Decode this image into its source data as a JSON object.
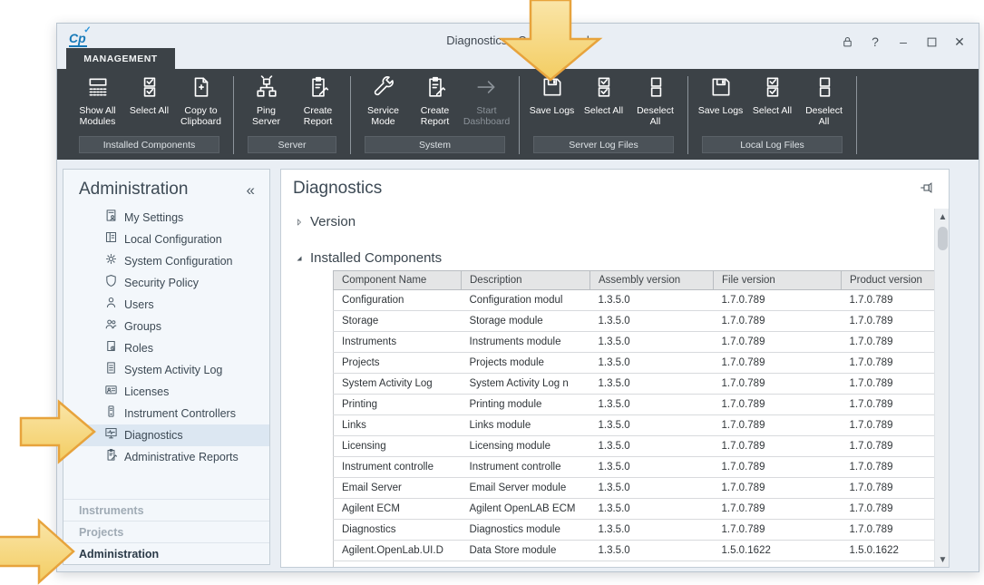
{
  "colors": {
    "ribbon-bg": "#3c4247",
    "ribbon-label-bg": "#4b5258",
    "titlebar-bg": "#e9eef4",
    "content-bg": "#e9eef4",
    "selected-bg": "#dce7f2",
    "table-header-bg": "#e4e5e6",
    "text-dark": "#3d4a55",
    "arrow-fill-light": "#fae5a8",
    "arrow-fill-dark": "#f3cd62",
    "arrow-stroke": "#e7a33c"
  },
  "window": {
    "title": "Diagnostics - Control Panel",
    "app_icon_text": "Cp",
    "controls": [
      {
        "icon": "lock-icon"
      },
      {
        "icon": "help-icon",
        "glyph": "?"
      },
      {
        "icon": "minimize-icon",
        "glyph": "–"
      },
      {
        "icon": "maximize-icon"
      },
      {
        "icon": "close-icon",
        "glyph": "✕"
      }
    ]
  },
  "ribbon": {
    "tab_label": "MANAGEMENT",
    "groups": [
      {
        "label": "Installed Components",
        "buttons": [
          {
            "label": "Show All Modules",
            "icon": "modules"
          },
          {
            "label": "Select All",
            "icon": "select-all"
          },
          {
            "label": "Copy to Clipboard",
            "icon": "copy-to-clipboard"
          }
        ]
      },
      {
        "label": "Server",
        "buttons": [
          {
            "label": "Ping Server",
            "icon": "network"
          },
          {
            "label": "Create Report",
            "icon": "report"
          }
        ]
      },
      {
        "label": "System",
        "buttons": [
          {
            "label": "Service Mode",
            "icon": "wrench"
          },
          {
            "label": "Create Report",
            "icon": "report"
          },
          {
            "label": "Start Dashboard",
            "icon": "arrow-right",
            "disabled": true
          }
        ]
      },
      {
        "label": "Server Log Files",
        "buttons": [
          {
            "label": "Save Logs",
            "icon": "save"
          },
          {
            "label": "Select All",
            "icon": "select-all"
          },
          {
            "label": "Deselect All",
            "icon": "deselect-all"
          }
        ]
      },
      {
        "label": "Local Log Files",
        "buttons": [
          {
            "label": "Save Logs",
            "icon": "save"
          },
          {
            "label": "Select All",
            "icon": "select-all"
          },
          {
            "label": "Deselect All",
            "icon": "deselect-all"
          }
        ]
      }
    ]
  },
  "sidebar": {
    "header": "Administration",
    "collapse_glyph": "«",
    "items": [
      {
        "label": "My Settings",
        "icon": "profile-doc"
      },
      {
        "label": "Local Configuration",
        "icon": "panel"
      },
      {
        "label": "System Configuration",
        "icon": "gear"
      },
      {
        "label": "Security Policy",
        "icon": "shield"
      },
      {
        "label": "Users",
        "icon": "person"
      },
      {
        "label": "Groups",
        "icon": "people"
      },
      {
        "label": "Roles",
        "icon": "role-doc"
      },
      {
        "label": "System Activity Log",
        "icon": "doc-lines"
      },
      {
        "label": "Licenses",
        "icon": "id-card"
      },
      {
        "label": "Instrument Controllers",
        "icon": "tower"
      },
      {
        "label": "Diagnostics",
        "icon": "monitor-pulse",
        "selected": true
      },
      {
        "label": "Administrative Reports",
        "icon": "report"
      }
    ],
    "sections": [
      {
        "label": "Instruments"
      },
      {
        "label": "Projects"
      },
      {
        "label": "Administration",
        "active": true
      }
    ]
  },
  "main": {
    "title": "Diagnostics",
    "sections": {
      "version": {
        "label": "Version",
        "expanded": false
      },
      "installed_components": {
        "label": "Installed Components",
        "expanded": true
      }
    },
    "table": {
      "headers": [
        "Component Name",
        "Description",
        "Assembly version",
        "File version",
        "Product version"
      ],
      "rows": [
        [
          "Configuration",
          "Configuration modul",
          "1.3.5.0",
          "1.7.0.789",
          "1.7.0.789"
        ],
        [
          "Storage",
          "Storage module",
          "1.3.5.0",
          "1.7.0.789",
          "1.7.0.789"
        ],
        [
          "Instruments",
          "Instruments module",
          "1.3.5.0",
          "1.7.0.789",
          "1.7.0.789"
        ],
        [
          "Projects",
          "Projects module",
          "1.3.5.0",
          "1.7.0.789",
          "1.7.0.789"
        ],
        [
          "System Activity Log",
          "System Activity Log n",
          "1.3.5.0",
          "1.7.0.789",
          "1.7.0.789"
        ],
        [
          "Printing",
          "Printing module",
          "1.3.5.0",
          "1.7.0.789",
          "1.7.0.789"
        ],
        [
          "Links",
          "Links module",
          "1.3.5.0",
          "1.7.0.789",
          "1.7.0.789"
        ],
        [
          "Licensing",
          "Licensing module",
          "1.3.5.0",
          "1.7.0.789",
          "1.7.0.789"
        ],
        [
          "Instrument controlle",
          "Instrument controlle",
          "1.3.5.0",
          "1.7.0.789",
          "1.7.0.789"
        ],
        [
          "Email Server",
          "Email Server module",
          "1.3.5.0",
          "1.7.0.789",
          "1.7.0.789"
        ],
        [
          "Agilent ECM",
          "Agilent OpenLAB ECM",
          "1.3.5.0",
          "1.7.0.789",
          "1.7.0.789"
        ],
        [
          "Diagnostics",
          "Diagnostics module",
          "1.3.5.0",
          "1.7.0.789",
          "1.7.0.789"
        ],
        [
          "Agilent.OpenLab.UI.D",
          "Data Store module",
          "1.3.5.0",
          "1.5.0.1622",
          "1.5.0.1622"
        ]
      ]
    }
  }
}
